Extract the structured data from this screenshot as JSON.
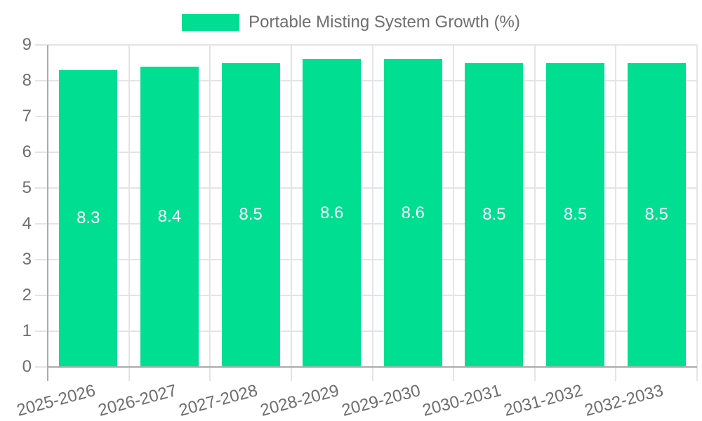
{
  "chart_data": {
    "type": "bar",
    "title": "",
    "legend": {
      "label": "Portable Misting System Growth (%)",
      "position": "top"
    },
    "categories": [
      "2025-2026",
      "2026-2027",
      "2027-2028",
      "2028-2029",
      "2029-2030",
      "2030-2031",
      "2031-2032",
      "2032-2033"
    ],
    "values": [
      8.3,
      8.4,
      8.5,
      8.6,
      8.6,
      8.5,
      8.5,
      8.5
    ],
    "value_labels": [
      "8.3",
      "8.4",
      "8.5",
      "8.6",
      "8.6",
      "8.5",
      "8.5",
      "8.5"
    ],
    "yticks": [
      0,
      1,
      2,
      3,
      4,
      5,
      6,
      7,
      8,
      9
    ],
    "ylim": [
      0,
      9
    ],
    "xlabel": "",
    "ylabel": "",
    "grid": true,
    "x_label_rotation_deg": -15,
    "colors": {
      "bar": "#00DE91",
      "value_label": "#FFFFFF",
      "grid": "#E4E4E4",
      "axis": "#ABABAB",
      "tick_label": "#6E6E6E",
      "legend_text": "#6E6E6E",
      "background": "#FFFFFF"
    }
  }
}
